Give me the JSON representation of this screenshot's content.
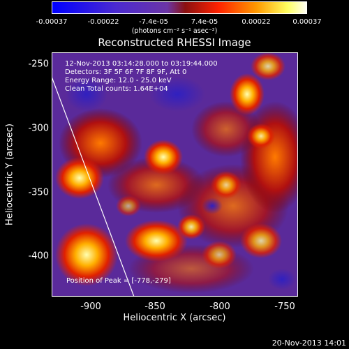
{
  "colorbar": {
    "ticks": [
      "-0.00037",
      "-0.00022",
      "-7.4e-05",
      "7.4e-05",
      "0.00022",
      "0.00037"
    ],
    "unit": "(photons cm⁻² s⁻¹ asec⁻²)",
    "colors": [
      "#0000ff",
      "#5a2cc8",
      "#8a3fa8",
      "#ff3000",
      "#ff9000",
      "#ffff80",
      "#ffffff"
    ]
  },
  "title": "Reconstructed RHESSI Image",
  "info": {
    "line1": "12-Nov-2013 03:14:28.000 to 03:19:44.000",
    "line2": "Detectors: 3F 5F 6F 7F 8F 9F, Att 0",
    "line3": "Energy Range: 12.0 - 25.0 keV",
    "line4": "Clean     Total counts: 1.64E+04"
  },
  "peak": "Position of Peak = [-778,-279]",
  "axes": {
    "xlabel": "Heliocentric X (arcsec)",
    "ylabel": "Heliocentric Y (arcsec)",
    "xticks": [
      "-900",
      "-850",
      "-800",
      "-750"
    ],
    "yticks": [
      "-250",
      "-300",
      "-350",
      "-400"
    ]
  },
  "timestamp": "20-Nov-2013 14:01"
}
